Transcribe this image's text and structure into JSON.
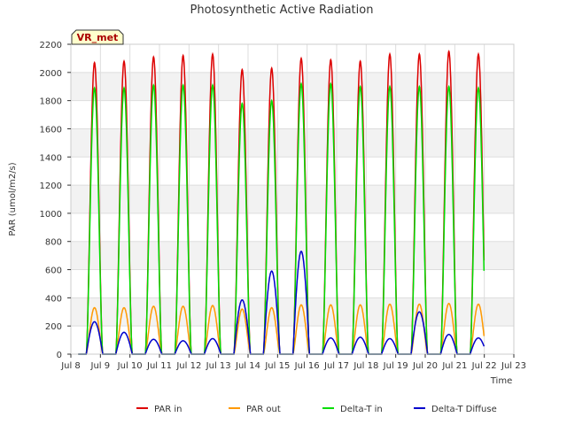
{
  "chart_data": {
    "type": "line",
    "title": "Photosynthetic Active Radiation",
    "xlabel": "Time",
    "ylabel": "PAR (umol/m2/s)",
    "tag": "VR_met",
    "ylim": [
      0,
      2200
    ],
    "xlim_days": [
      8,
      23
    ],
    "yticks": [
      0,
      200,
      400,
      600,
      800,
      1000,
      1200,
      1400,
      1600,
      1800,
      2000,
      2200
    ],
    "xticks": [
      {
        "day": 8,
        "label": "Jul 8"
      },
      {
        "day": 9,
        "label": "Jul 9"
      },
      {
        "day": 10,
        "label": "Jul 10"
      },
      {
        "day": 11,
        "label": "Jul 11"
      },
      {
        "day": 12,
        "label": "Jul 12"
      },
      {
        "day": 13,
        "label": "Jul 13"
      },
      {
        "day": 14,
        "label": "Jul 14"
      },
      {
        "day": 15,
        "label": "Jul 15"
      },
      {
        "day": 16,
        "label": "Jul 16"
      },
      {
        "day": 17,
        "label": "Jul 17"
      },
      {
        "day": 18,
        "label": "Jul 18"
      },
      {
        "day": 19,
        "label": "Jul 19"
      },
      {
        "day": 20,
        "label": "Jul 20"
      },
      {
        "day": 21,
        "label": "Jul 21"
      },
      {
        "day": 22,
        "label": "Jul 22"
      },
      {
        "day": 23,
        "label": "Jul 23"
      }
    ],
    "grid": true,
    "legend_position": "bottom",
    "days": [
      8.8,
      9.8,
      10.8,
      11.8,
      12.8,
      13.8,
      14.8,
      15.8,
      16.8,
      17.8,
      18.8,
      19.8,
      20.8,
      21.8
    ],
    "series": [
      {
        "name": "PAR in",
        "color": "#dd0000",
        "daily_peak": [
          2070,
          2080,
          2110,
          2120,
          2130,
          2020,
          2030,
          2100,
          2090,
          2080,
          2130,
          2130,
          2150,
          2130
        ]
      },
      {
        "name": "PAR out",
        "color": "#ff9900",
        "daily_peak": [
          330,
          330,
          340,
          340,
          345,
          320,
          330,
          350,
          350,
          350,
          355,
          355,
          360,
          355
        ]
      },
      {
        "name": "Delta-T in",
        "color": "#00dd00",
        "daily_peak": [
          1890,
          1890,
          1910,
          1910,
          1910,
          1780,
          1800,
          1920,
          1920,
          1900,
          1900,
          1900,
          1900,
          1890
        ]
      },
      {
        "name": "Delta-T Diffuse",
        "color": "#0000cc",
        "daily_peak": [
          230,
          155,
          105,
          95,
          110,
          385,
          590,
          730,
          115,
          120,
          110,
          300,
          140,
          115
        ]
      }
    ]
  }
}
